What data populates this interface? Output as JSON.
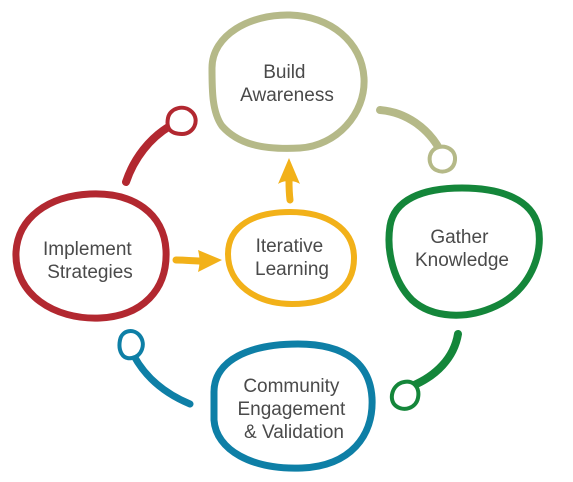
{
  "nodes": {
    "build_awareness": {
      "line1": "Build",
      "line2": "Awareness",
      "color": "#b5b988"
    },
    "gather_knowledge": {
      "line1": "Gather",
      "line2": "Knowledge",
      "color": "#14863a"
    },
    "community_engagement": {
      "line1": "Community",
      "line2": "Engagement",
      "line3": "& Validation",
      "color": "#0e7fa6"
    },
    "implement_strategies": {
      "line1": "Implement",
      "line2": "Strategies",
      "color": "#b22830"
    },
    "iterative_learning": {
      "line1": "Iterative",
      "line2": "Learning",
      "color": "#f2b119"
    }
  }
}
